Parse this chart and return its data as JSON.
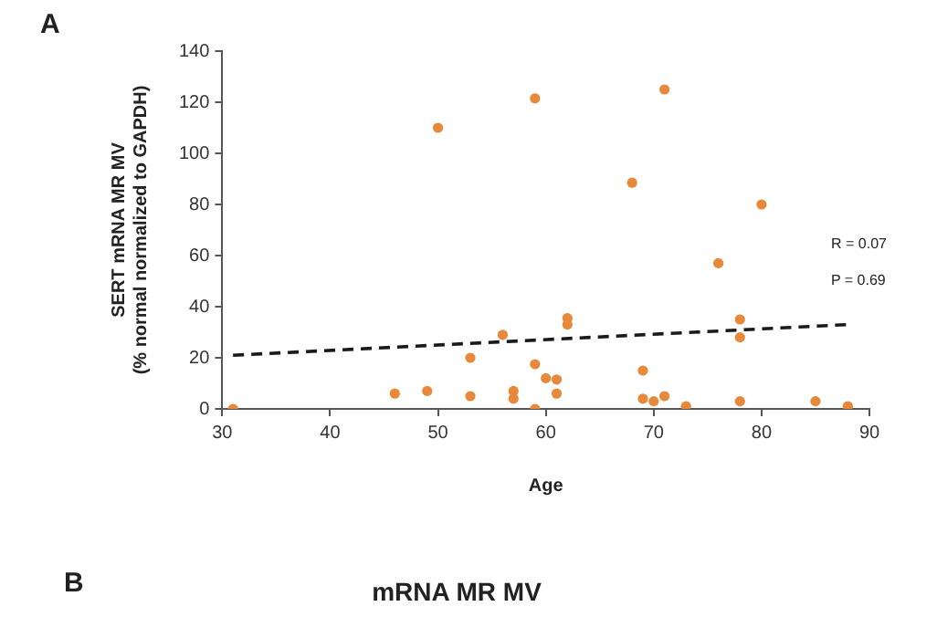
{
  "chart_data": {
    "type": "scatter",
    "xlabel": "Age",
    "ylabel": "SERT mRNA MR MV\n(% normal normalized to GAPDH)",
    "xlim": [
      30,
      90
    ],
    "xticks": [
      30,
      40,
      50,
      60,
      70,
      80,
      90
    ],
    "ylim": [
      0,
      140
    ],
    "yticks": [
      0,
      20,
      40,
      60,
      80,
      100,
      120,
      140
    ],
    "marker": "circle",
    "legend": false,
    "series": [
      {
        "color": "#e8883a",
        "x": [
          31,
          46,
          49,
          50,
          53,
          53,
          56,
          57,
          57,
          59,
          59,
          59,
          60,
          61,
          61,
          62,
          62,
          68,
          69,
          69,
          70,
          71,
          71,
          73,
          76,
          78,
          78,
          78,
          80,
          85,
          88
        ],
        "values": [
          0,
          6,
          7,
          110,
          5,
          20,
          29,
          7,
          4,
          121.5,
          17.5,
          0,
          12,
          11.5,
          6,
          35.5,
          33,
          88.5,
          15,
          4,
          3,
          5,
          125,
          1,
          57,
          35,
          28,
          3,
          80,
          3,
          1
        ]
      },
      {
        "type": "line",
        "color": "#1a1a1a",
        "line_style": "dashed",
        "marker": "none",
        "x": [
          31,
          88
        ],
        "values": [
          21,
          33
        ]
      }
    ],
    "annotations": [
      "A",
      "R = 0.07",
      "P = 0.69",
      "B",
      "mRNA MR MV"
    ]
  }
}
